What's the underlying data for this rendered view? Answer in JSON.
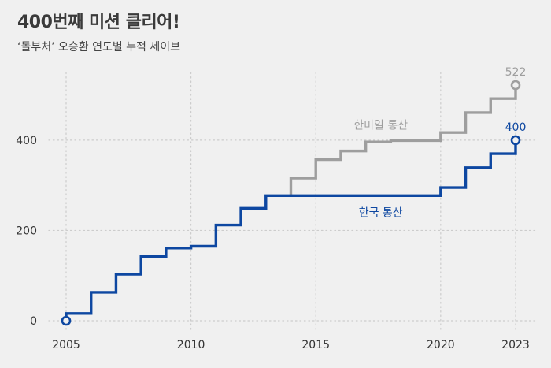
{
  "header": {
    "title": "400번째 미션 클리어!",
    "subtitle": "‘돌부처’ 오승환 연도별 누적 세이브"
  },
  "colors": {
    "background": "#f0f0f0",
    "korea": "#0d47a1",
    "combined": "#9e9e9e",
    "grid": "#cccccc"
  },
  "chart_data": {
    "type": "line",
    "step": true,
    "title": "400번째 미션 클리어!",
    "subtitle": "‘돌부처’ 오승환 연도별 누적 세이브",
    "xlabel": "",
    "ylabel": "",
    "xlim": [
      2005,
      2023
    ],
    "ylim": [
      0,
      522
    ],
    "x_ticks": [
      2005,
      2010,
      2015,
      2020,
      2023
    ],
    "y_ticks": [
      0,
      200,
      400
    ],
    "grid": true,
    "series": [
      {
        "name": "한국 통산",
        "color": "#0d47a1",
        "x": [
          2005,
          2006,
          2007,
          2008,
          2009,
          2010,
          2011,
          2012,
          2013,
          2014,
          2015,
          2016,
          2017,
          2018,
          2019,
          2020,
          2021,
          2022,
          2023
        ],
        "values": [
          16,
          63,
          103,
          142,
          161,
          165,
          212,
          249,
          277,
          277,
          277,
          277,
          277,
          277,
          277,
          295,
          339,
          370,
          400
        ]
      },
      {
        "name": "한미일 통산",
        "color": "#9e9e9e",
        "x": [
          2014,
          2015,
          2016,
          2017,
          2018,
          2019,
          2020,
          2021,
          2022,
          2023
        ],
        "values": [
          316,
          357,
          376,
          396,
          399,
          399,
          417,
          461,
          492,
          522
        ]
      }
    ],
    "end_labels": [
      "400",
      "522"
    ]
  }
}
